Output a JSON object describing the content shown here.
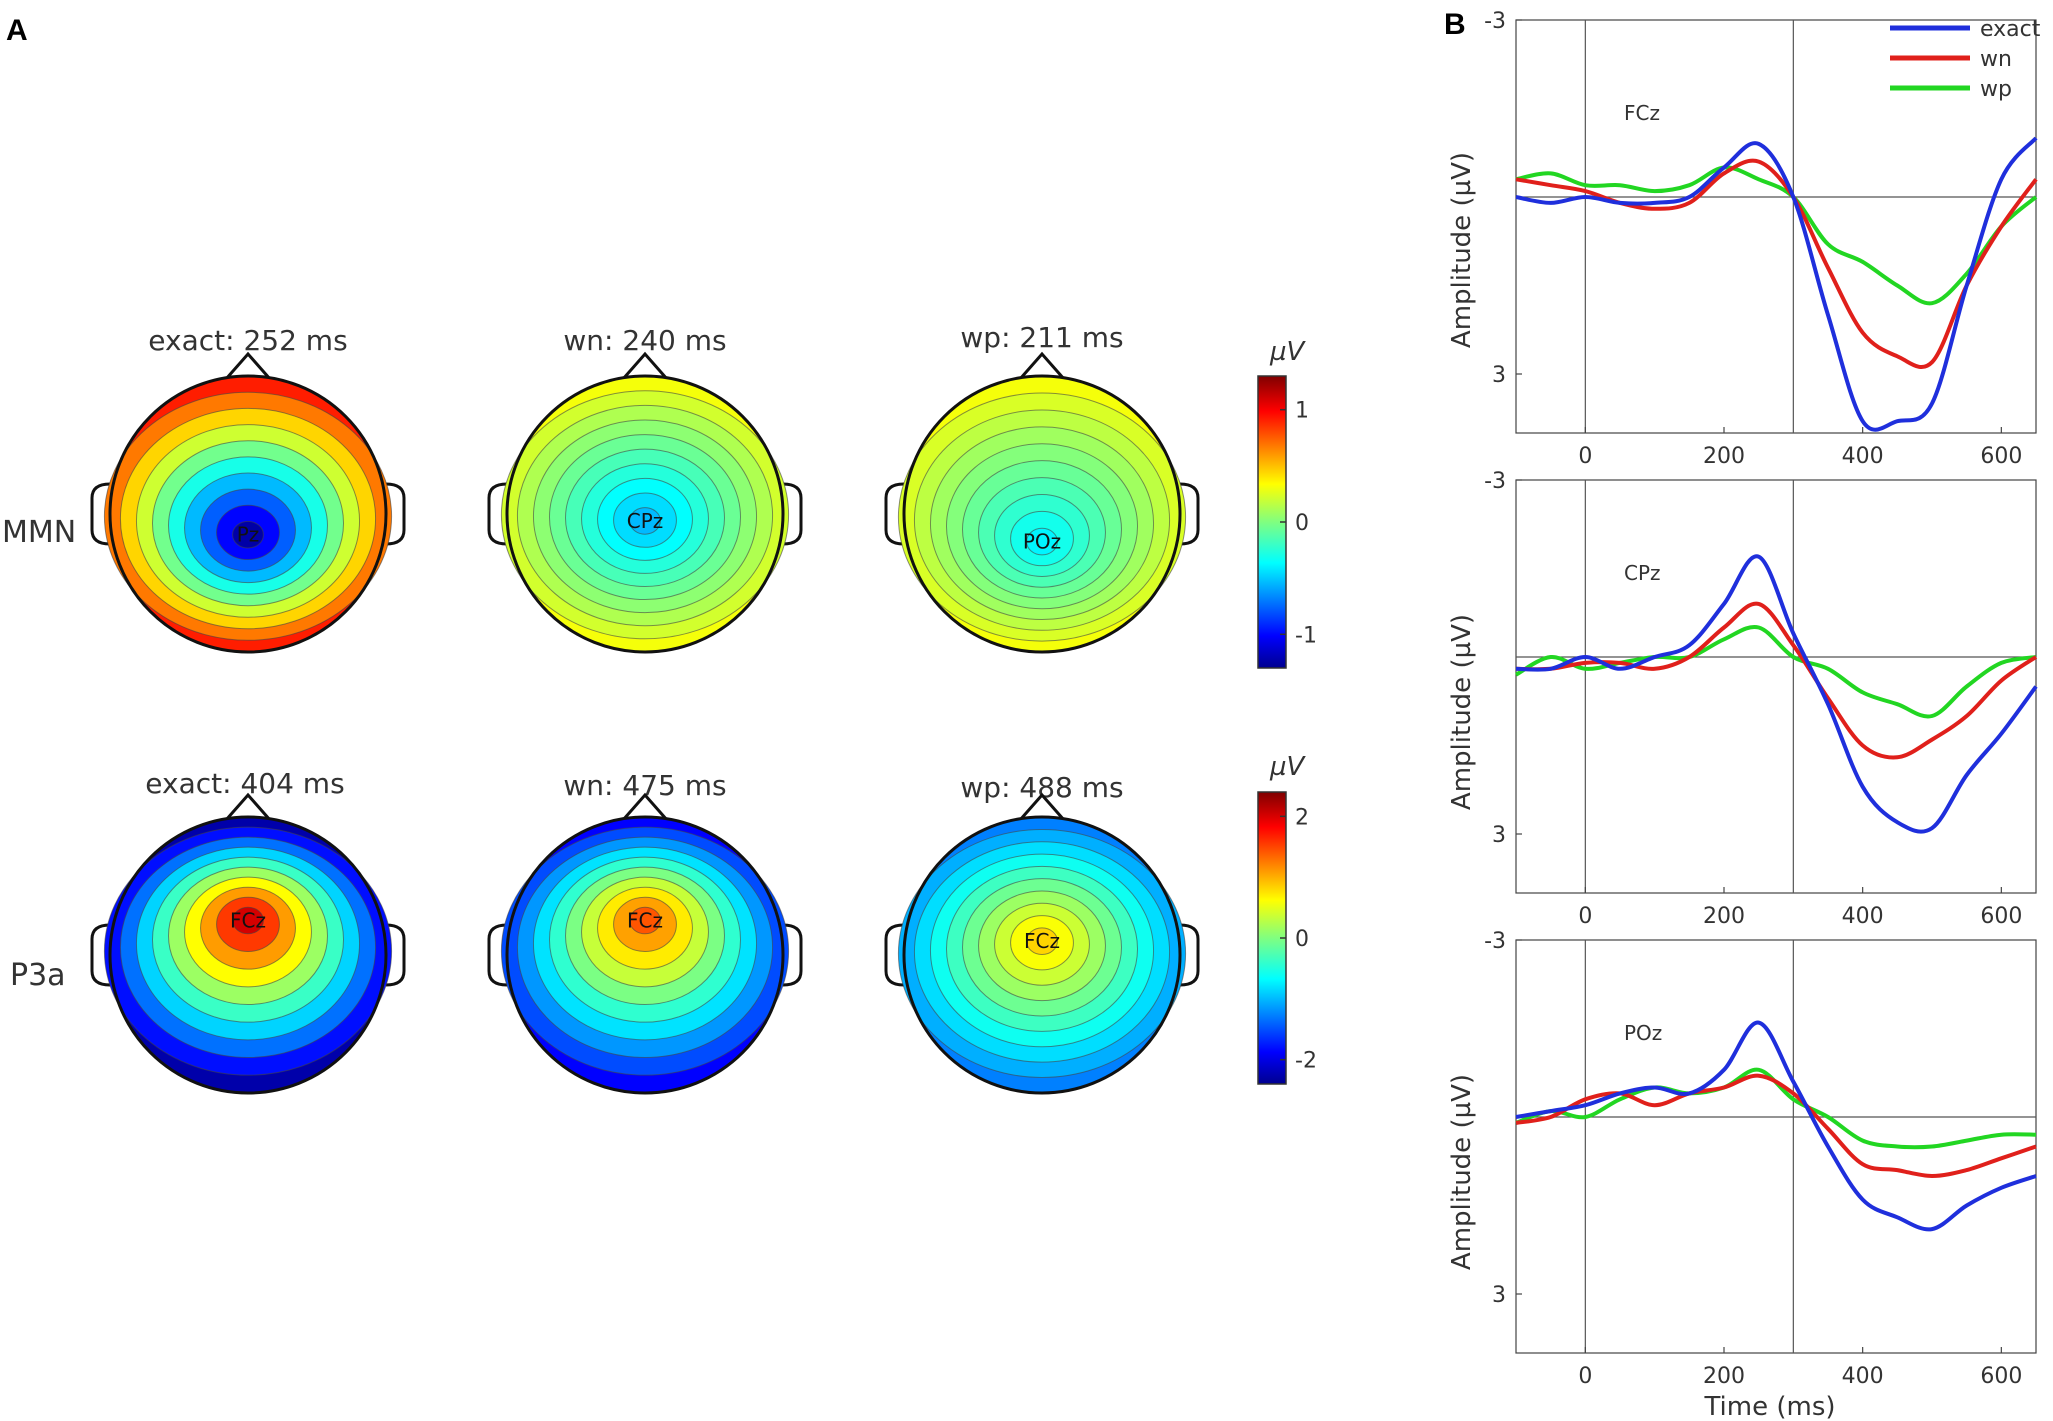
{
  "panels": {
    "a": "A",
    "b": "B"
  },
  "topomaps": {
    "rows": [
      {
        "label": "MMN",
        "maps": [
          {
            "title": "exact: 252 ms",
            "electrode": "Pz",
            "peak": -1.2,
            "rim": 0.9,
            "center": [
              0,
              0.15
            ]
          },
          {
            "title": "wn: 240 ms",
            "electrode": "CPz",
            "peak": -0.5,
            "rim": 0.3,
            "center": [
              0,
              0.05
            ]
          },
          {
            "title": "wp: 211 ms",
            "electrode": "POz",
            "peak": -0.35,
            "rim": 0.3,
            "center": [
              0,
              0.2
            ]
          }
        ]
      },
      {
        "label": "P3a",
        "maps": [
          {
            "title": "exact: 404 ms",
            "electrode": "FCz",
            "peak": 2.0,
            "rim": -2.2,
            "center": [
              0,
              -0.25
            ]
          },
          {
            "title": "wn: 475 ms",
            "electrode": "FCz",
            "peak": 1.4,
            "rim": -1.8,
            "center": [
              0,
              -0.25
            ]
          },
          {
            "title": "wp: 488 ms",
            "electrode": "FCz",
            "peak": 0.8,
            "rim": -1.2,
            "center": [
              0,
              -0.1
            ]
          }
        ]
      }
    ],
    "colorbars": [
      {
        "unit": "µV",
        "range": [
          -1.3,
          1.3
        ],
        "ticks": [
          1,
          0,
          -1
        ]
      },
      {
        "unit": "µV",
        "range": [
          -2.4,
          2.4
        ],
        "ticks": [
          2,
          0,
          -2
        ]
      }
    ]
  },
  "chart_data": {
    "type": "line",
    "xlabel": "Time (ms)",
    "ylabel": "Amplitude (µV)",
    "xlim": [
      -100,
      650
    ],
    "ylim": [
      -3.0,
      4.0
    ],
    "y_reversed": true,
    "xticks": [
      0,
      200,
      400,
      600
    ],
    "yticks": [
      -3,
      3
    ],
    "vlines": [
      0,
      300
    ],
    "legend": [
      {
        "name": "exact",
        "color": "#1f2fdc"
      },
      {
        "name": "wn",
        "color": "#e0201b"
      },
      {
        "name": "wp",
        "color": "#22d622"
      }
    ],
    "x": [
      -100,
      -50,
      0,
      50,
      100,
      150,
      200,
      250,
      300,
      350,
      400,
      450,
      500,
      550,
      600,
      650
    ],
    "channels": [
      {
        "name": "FCz",
        "series": [
          {
            "name": "exact",
            "values": [
              0.0,
              0.1,
              0.0,
              0.1,
              0.1,
              0.0,
              -0.5,
              -0.9,
              0.0,
              2.0,
              3.8,
              3.8,
              3.5,
              1.5,
              -0.3,
              -1.0
            ]
          },
          {
            "name": "wn",
            "values": [
              -0.3,
              -0.2,
              -0.1,
              0.1,
              0.2,
              0.1,
              -0.4,
              -0.6,
              0.0,
              1.2,
              2.3,
              2.7,
              2.8,
              1.5,
              0.5,
              -0.3
            ]
          },
          {
            "name": "wp",
            "values": [
              -0.3,
              -0.4,
              -0.2,
              -0.2,
              -0.1,
              -0.2,
              -0.5,
              -0.3,
              0.0,
              0.8,
              1.1,
              1.5,
              1.8,
              1.3,
              0.5,
              0.0
            ]
          }
        ]
      },
      {
        "name": "CPz",
        "series": [
          {
            "name": "exact",
            "values": [
              0.2,
              0.2,
              0.0,
              0.2,
              0.0,
              -0.2,
              -0.9,
              -1.7,
              -0.4,
              0.8,
              2.2,
              2.8,
              2.9,
              2.0,
              1.3,
              0.5
            ]
          },
          {
            "name": "wn",
            "values": [
              0.2,
              0.2,
              0.1,
              0.1,
              0.2,
              0.0,
              -0.5,
              -0.9,
              -0.2,
              0.7,
              1.5,
              1.7,
              1.4,
              1.0,
              0.4,
              0.0
            ]
          },
          {
            "name": "wp",
            "values": [
              0.3,
              0.0,
              0.2,
              0.1,
              0.0,
              0.0,
              -0.3,
              -0.5,
              0.0,
              0.2,
              0.6,
              0.8,
              1.0,
              0.5,
              0.1,
              0.0
            ]
          }
        ]
      },
      {
        "name": "POz",
        "series": [
          {
            "name": "exact",
            "values": [
              0.0,
              -0.1,
              -0.2,
              -0.4,
              -0.5,
              -0.4,
              -0.8,
              -1.6,
              -0.6,
              0.5,
              1.4,
              1.7,
              1.9,
              1.5,
              1.2,
              1.0
            ]
          },
          {
            "name": "wn",
            "values": [
              0.1,
              0.0,
              -0.3,
              -0.4,
              -0.2,
              -0.4,
              -0.5,
              -0.7,
              -0.4,
              0.2,
              0.8,
              0.9,
              1.0,
              0.9,
              0.7,
              0.5
            ]
          },
          {
            "name": "wp",
            "values": [
              0.1,
              -0.1,
              0.0,
              -0.3,
              -0.5,
              -0.4,
              -0.5,
              -0.8,
              -0.3,
              0.0,
              0.4,
              0.5,
              0.5,
              0.4,
              0.3,
              0.3
            ]
          }
        ]
      }
    ]
  }
}
